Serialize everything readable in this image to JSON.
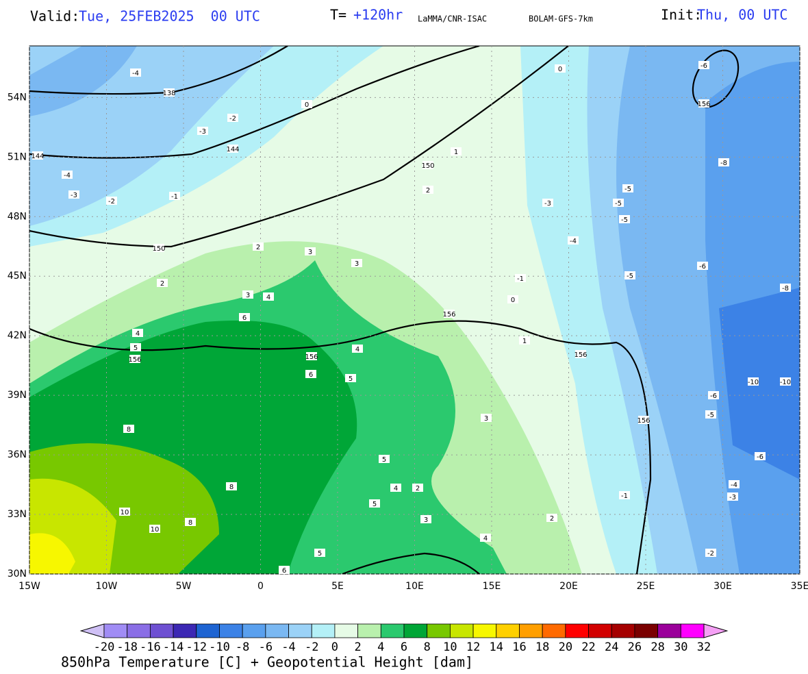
{
  "header": {
    "valid_label": "Valid:",
    "valid_time": "Tue, 25FEB2025  00 UTC",
    "step_label": "T=",
    "step": "+120hr",
    "institute": "LaMMA/CNR-ISAC",
    "model": "BOLAM-GFS-7km",
    "init_label": "Init:",
    "init_time": "Thu, 00 UTC"
  },
  "map": {
    "xlim": [
      -15,
      35
    ],
    "ylim": [
      30,
      56.6
    ],
    "xticks": [
      {
        "value": -15,
        "label": "15W"
      },
      {
        "value": -10,
        "label": "10W"
      },
      {
        "value": -5,
        "label": "5W"
      },
      0,
      {
        "value": 5,
        "label": "5E"
      },
      {
        "value": 10,
        "label": "10E"
      },
      {
        "value": 15,
        "label": "15E"
      },
      {
        "value": 20,
        "label": "20E"
      },
      {
        "value": 25,
        "label": "25E"
      },
      {
        "value": 30,
        "label": "30E"
      },
      {
        "value": 35,
        "label": "35E"
      }
    ],
    "yticks": [
      {
        "value": 30,
        "label": "30N"
      },
      {
        "value": 33,
        "label": "33N"
      },
      {
        "value": 36,
        "label": "36N"
      },
      {
        "value": 39,
        "label": "39N"
      },
      {
        "value": 42,
        "label": "42N"
      },
      {
        "value": 45,
        "label": "45N"
      },
      {
        "value": 48,
        "label": "48N"
      },
      {
        "value": 51,
        "label": "51N"
      },
      {
        "value": 54,
        "label": "54N"
      }
    ],
    "contour_labels": [
      -4,
      138,
      -3,
      -2,
      144,
      144,
      -4,
      -3,
      -2,
      -1,
      150,
      150,
      -6,
      156,
      -8,
      -5,
      -5,
      -5,
      -4,
      -3,
      -5,
      -6,
      -8,
      -10,
      -10,
      -6,
      -5,
      -6,
      -4,
      -3,
      -1,
      -2,
      -1,
      0,
      1,
      0,
      0,
      1,
      2,
      2,
      2,
      3,
      4,
      3,
      3,
      4,
      5,
      156,
      156,
      156,
      156,
      156,
      5,
      4,
      6,
      6,
      8,
      8,
      10,
      10,
      8,
      5,
      4,
      5,
      2,
      3,
      3,
      4,
      2,
      5,
      6
    ]
  },
  "colorbar": {
    "title": "850hPa Temperature [C] + Geopotential Height [dam]",
    "ticks": [
      -20,
      -18,
      -16,
      -14,
      -12,
      -10,
      -8,
      -6,
      -4,
      -2,
      0,
      2,
      4,
      6,
      8,
      10,
      12,
      14,
      16,
      18,
      20,
      22,
      24,
      26,
      28,
      30,
      32
    ],
    "colors": [
      "#cfc0f5",
      "#a08cf5",
      "#8a6ee6",
      "#6e50d2",
      "#3c28b4",
      "#1e64d2",
      "#3c82e6",
      "#5aa0ee",
      "#7ab8f2",
      "#9bd2f7",
      "#b4f0f7",
      "#e6fbe6",
      "#b9f0ad",
      "#2bc96e",
      "#00a637",
      "#78c800",
      "#c8e600",
      "#f7f700",
      "#ffd000",
      "#ff9f00",
      "#ff6a00",
      "#ff0000",
      "#d20000",
      "#a50000",
      "#7a0000",
      "#9b009b",
      "#ff00ff",
      "#f5a0f5"
    ]
  }
}
